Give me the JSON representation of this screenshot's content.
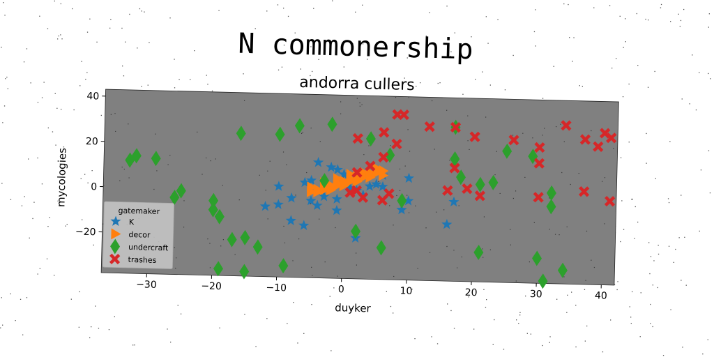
{
  "chart_data": {
    "type": "scatter",
    "title": "N commonership",
    "subtitle": "andorra cullers",
    "xlabel": "duyker",
    "ylabel": "mycologies",
    "xlim": [
      -37,
      42
    ],
    "ylim": [
      -38,
      43
    ],
    "xticks": [
      -30,
      -20,
      -10,
      0,
      10,
      20,
      30,
      40
    ],
    "yticks": [
      -20,
      0,
      20,
      40
    ],
    "xtick_labels": [
      "−30",
      "−20",
      "−10",
      "0",
      "10",
      "20",
      "30",
      "40"
    ],
    "ytick_labels": [
      "−20",
      "0",
      "20",
      "40"
    ],
    "grid": false,
    "background": "#808080",
    "legend": {
      "title": "gatemaker",
      "position": "lower-left"
    },
    "series": [
      {
        "name": "K",
        "marker": "star",
        "color": "#1f77b4",
        "points": [
          [
            -4,
            13
          ],
          [
            -2,
            11
          ],
          [
            -1,
            10
          ],
          [
            0,
            8
          ],
          [
            1,
            7
          ],
          [
            -5,
            5
          ],
          [
            -6,
            4
          ],
          [
            -10,
            2
          ],
          [
            -8,
            -3
          ],
          [
            -5,
            -4
          ],
          [
            -3,
            -2
          ],
          [
            -10,
            -6
          ],
          [
            -12,
            -7
          ],
          [
            -4,
            -6
          ],
          [
            -1,
            -8
          ],
          [
            -8,
            -13
          ],
          [
            -6,
            -15
          ],
          [
            2,
            -20
          ],
          [
            -1,
            -3
          ],
          [
            3,
            -1
          ],
          [
            2,
            1
          ],
          [
            5,
            4
          ],
          [
            6,
            3
          ],
          [
            10,
            7
          ],
          [
            10,
            -3
          ],
          [
            9,
            -7
          ],
          [
            16,
            -13
          ],
          [
            17,
            -3
          ],
          [
            4,
            3
          ],
          [
            6,
            8
          ],
          [
            1,
            2
          ]
        ]
      },
      {
        "name": "decor",
        "marker": "triangle-right",
        "color": "#ff7f0e",
        "points": [
          [
            -5,
            0
          ],
          [
            -4,
            1
          ],
          [
            -3,
            2
          ],
          [
            -2,
            3
          ],
          [
            -1,
            4
          ],
          [
            0,
            5
          ],
          [
            1,
            6
          ],
          [
            2,
            7
          ],
          [
            3,
            8
          ],
          [
            4,
            9
          ],
          [
            5,
            10
          ],
          [
            -4,
            0
          ],
          [
            -3,
            1
          ],
          [
            -2,
            2
          ],
          [
            -1,
            3
          ],
          [
            0,
            4
          ],
          [
            1,
            5
          ],
          [
            2,
            6
          ],
          [
            3,
            7
          ],
          [
            4,
            8
          ],
          [
            5,
            9
          ],
          [
            6,
            10
          ],
          [
            -5,
            2
          ],
          [
            -3,
            4
          ],
          [
            -1,
            6
          ],
          [
            1,
            8
          ],
          [
            3,
            9
          ],
          [
            5,
            11
          ],
          [
            -2,
            1
          ],
          [
            0,
            3
          ],
          [
            2,
            5
          ],
          [
            4,
            7
          ],
          [
            6,
            8
          ]
        ]
      },
      {
        "name": "undercraft",
        "marker": "diamond",
        "color": "#2ca02c",
        "points": [
          [
            -33,
            12
          ],
          [
            -32,
            14
          ],
          [
            -29,
            13
          ],
          [
            -26,
            -4
          ],
          [
            -25,
            -1
          ],
          [
            -20,
            -5
          ],
          [
            -20,
            -9
          ],
          [
            -19,
            -12
          ],
          [
            -17,
            -22
          ],
          [
            -15,
            -21
          ],
          [
            -13,
            -25
          ],
          [
            -19,
            -35
          ],
          [
            -15,
            -36
          ],
          [
            -9,
            -33
          ],
          [
            -16,
            25
          ],
          [
            -10,
            25
          ],
          [
            -7,
            29
          ],
          [
            -2,
            30
          ],
          [
            4,
            24
          ],
          [
            7,
            17
          ],
          [
            2,
            -17
          ],
          [
            6,
            -24
          ],
          [
            9,
            -3
          ],
          [
            17,
            30
          ],
          [
            17,
            16
          ],
          [
            18,
            8
          ],
          [
            21,
            5
          ],
          [
            23,
            6
          ],
          [
            21,
            -25
          ],
          [
            25,
            20
          ],
          [
            29,
            18
          ],
          [
            30,
            -27
          ],
          [
            31,
            -37
          ],
          [
            32,
            -4
          ],
          [
            32,
            2
          ],
          [
            34,
            -32
          ],
          [
            -3,
            5
          ]
        ]
      },
      {
        "name": "trashes",
        "marker": "x",
        "color": "#d62728",
        "points": [
          [
            8,
            35
          ],
          [
            9,
            35
          ],
          [
            13,
            30
          ],
          [
            17,
            30
          ],
          [
            6,
            27
          ],
          [
            8,
            22
          ],
          [
            20,
            26
          ],
          [
            26,
            25
          ],
          [
            30,
            22
          ],
          [
            30,
            15
          ],
          [
            34,
            32
          ],
          [
            37,
            26
          ],
          [
            39,
            23
          ],
          [
            40,
            29
          ],
          [
            41,
            27
          ],
          [
            2,
            24
          ],
          [
            6,
            16
          ],
          [
            4,
            12
          ],
          [
            2,
            9
          ],
          [
            2,
            1
          ],
          [
            1,
            0
          ],
          [
            3,
            -2
          ],
          [
            6,
            -3
          ],
          [
            7,
            0
          ],
          [
            16,
            2
          ],
          [
            17,
            12
          ],
          [
            19,
            3
          ],
          [
            21,
            0
          ],
          [
            30,
            0
          ],
          [
            37,
            3
          ],
          [
            41,
            -1
          ]
        ]
      }
    ]
  }
}
